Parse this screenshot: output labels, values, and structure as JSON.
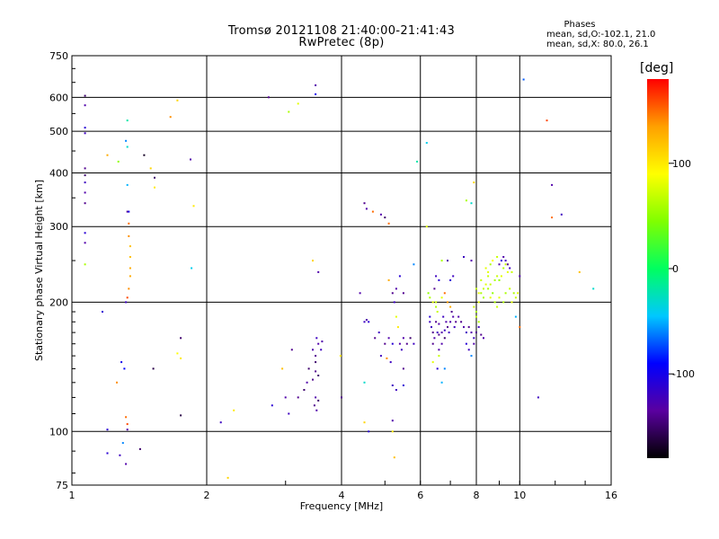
{
  "title_line1": "Tromsø 20121108 21:40:00-21:41:43",
  "title_line2": "RwPretec (8p)",
  "stats": {
    "heading": "Phases",
    "line1": "mean, sd,O:-102.1, 21.0",
    "line2": "mean, sd,X:  80.0, 26.1"
  },
  "chart_data": {
    "type": "scatter",
    "xlabel": "Frequency [MHz]",
    "ylabel": "Stationary phase Virtual Height [km]",
    "xscale": "log",
    "yscale": "log",
    "xlim": [
      1,
      16
    ],
    "ylim": [
      75,
      750
    ],
    "x_ticks": [
      1,
      2,
      4,
      6,
      8,
      10,
      16
    ],
    "y_ticks": [
      75,
      100,
      200,
      300,
      400,
      500,
      600,
      750
    ],
    "grid": true,
    "colorbar": {
      "label": "[deg]",
      "range": [
        -180,
        180
      ],
      "ticks": [
        100,
        0,
        -100
      ],
      "colormap": [
        "#000000",
        "#5a00a0",
        "#0000ff",
        "#00c8ff",
        "#00ff60",
        "#80ff00",
        "#ffff00",
        "#ffa000",
        "#ff0000"
      ]
    },
    "points": [
      [
        1.07,
        605,
        -150
      ],
      [
        1.07,
        575,
        -130
      ],
      [
        1.07,
        510,
        -110
      ],
      [
        1.07,
        495,
        -120
      ],
      [
        1.07,
        410,
        -140
      ],
      [
        1.07,
        395,
        -150
      ],
      [
        1.07,
        380,
        -120
      ],
      [
        1.07,
        360,
        -130
      ],
      [
        1.07,
        340,
        -140
      ],
      [
        1.07,
        290,
        -110
      ],
      [
        1.07,
        275,
        -130
      ],
      [
        1.07,
        245,
        60
      ],
      [
        1.2,
        440,
        130
      ],
      [
        1.27,
        425,
        50
      ],
      [
        1.33,
        530,
        -20
      ],
      [
        1.32,
        475,
        -60
      ],
      [
        1.33,
        460,
        -30
      ],
      [
        1.33,
        375,
        -50
      ],
      [
        1.33,
        325,
        -140
      ],
      [
        1.34,
        325,
        -100
      ],
      [
        1.34,
        305,
        150
      ],
      [
        1.34,
        285,
        140
      ],
      [
        1.35,
        270,
        120
      ],
      [
        1.35,
        255,
        120
      ],
      [
        1.35,
        240,
        130
      ],
      [
        1.35,
        230,
        130
      ],
      [
        1.34,
        215,
        140
      ],
      [
        1.33,
        205,
        160
      ],
      [
        1.32,
        200,
        -120
      ],
      [
        1.17,
        190,
        -110
      ],
      [
        1.29,
        145,
        -100
      ],
      [
        1.31,
        140,
        -90
      ],
      [
        1.26,
        130,
        140
      ],
      [
        1.32,
        108,
        150
      ],
      [
        1.33,
        104,
        160
      ],
      [
        1.2,
        101,
        -110
      ],
      [
        1.33,
        101,
        -130
      ],
      [
        1.2,
        89,
        -110
      ],
      [
        1.28,
        88,
        -120
      ],
      [
        1.32,
        84,
        -130
      ],
      [
        1.42,
        91,
        -150
      ],
      [
        1.3,
        94,
        -60
      ],
      [
        1.45,
        440,
        -170
      ],
      [
        1.5,
        410,
        110
      ],
      [
        1.53,
        390,
        -150
      ],
      [
        1.53,
        370,
        100
      ],
      [
        1.52,
        140,
        -160
      ],
      [
        1.66,
        540,
        140
      ],
      [
        1.72,
        590,
        110
      ],
      [
        1.75,
        165,
        -150
      ],
      [
        1.72,
        152,
        90
      ],
      [
        1.75,
        148,
        100
      ],
      [
        1.75,
        109,
        -160
      ],
      [
        1.84,
        430,
        -130
      ],
      [
        1.87,
        335,
        100
      ],
      [
        1.85,
        240,
        -40
      ],
      [
        2.15,
        105,
        -120
      ],
      [
        2.23,
        78,
        110
      ],
      [
        2.3,
        112,
        100
      ],
      [
        2.75,
        600,
        -140
      ],
      [
        3.05,
        555,
        60
      ],
      [
        3.2,
        580,
        80
      ],
      [
        3.5,
        640,
        -130
      ],
      [
        3.5,
        610,
        -100
      ],
      [
        3.45,
        250,
        110
      ],
      [
        3.55,
        235,
        -130
      ],
      [
        2.8,
        115,
        -110
      ],
      [
        2.95,
        140,
        120
      ],
      [
        3.0,
        120,
        -130
      ],
      [
        3.05,
        110,
        -120
      ],
      [
        3.1,
        155,
        -140
      ],
      [
        3.2,
        120,
        -140
      ],
      [
        3.3,
        125,
        -150
      ],
      [
        3.35,
        130,
        -130
      ],
      [
        3.38,
        140,
        -150
      ],
      [
        3.45,
        155,
        -130
      ],
      [
        3.5,
        150,
        -140
      ],
      [
        3.5,
        145,
        -150
      ],
      [
        3.52,
        165,
        -120
      ],
      [
        3.55,
        160,
        -130
      ],
      [
        3.6,
        155,
        -120
      ],
      [
        3.62,
        162,
        -130
      ],
      [
        3.5,
        138,
        -140
      ],
      [
        3.55,
        135,
        -150
      ],
      [
        3.45,
        132,
        -140
      ],
      [
        3.5,
        120,
        -130
      ],
      [
        3.55,
        118,
        -150
      ],
      [
        3.48,
        115,
        -140
      ],
      [
        3.52,
        112,
        -130
      ],
      [
        3.98,
        150,
        100
      ],
      [
        4.0,
        120,
        -140
      ],
      [
        4.5,
        340,
        -140
      ],
      [
        4.55,
        330,
        -130
      ],
      [
        4.7,
        325,
        150
      ],
      [
        4.9,
        320,
        -130
      ],
      [
        5.0,
        315,
        -150
      ],
      [
        5.1,
        305,
        150
      ],
      [
        4.4,
        210,
        -130
      ],
      [
        4.5,
        180,
        -120
      ],
      [
        4.6,
        180,
        -110
      ],
      [
        4.55,
        182,
        -130
      ],
      [
        4.5,
        130,
        -30
      ],
      [
        4.5,
        105,
        110
      ],
      [
        4.6,
        100,
        -110
      ],
      [
        4.75,
        165,
        -140
      ],
      [
        4.85,
        170,
        -120
      ],
      [
        5.0,
        160,
        -140
      ],
      [
        5.1,
        165,
        -130
      ],
      [
        5.2,
        160,
        -110
      ],
      [
        4.9,
        150,
        -120
      ],
      [
        5.05,
        148,
        140
      ],
      [
        5.15,
        145,
        -120
      ],
      [
        5.3,
        185,
        80
      ],
      [
        5.35,
        175,
        100
      ],
      [
        5.4,
        160,
        -130
      ],
      [
        5.45,
        155,
        -120
      ],
      [
        5.5,
        140,
        -140
      ],
      [
        5.6,
        160,
        -140
      ],
      [
        5.7,
        165,
        -150
      ],
      [
        5.8,
        160,
        -120
      ],
      [
        5.5,
        165,
        -130
      ],
      [
        5.1,
        225,
        130
      ],
      [
        5.2,
        210,
        -140
      ],
      [
        5.25,
        200,
        -120
      ],
      [
        5.3,
        215,
        -130
      ],
      [
        5.5,
        210,
        -140
      ],
      [
        5.4,
        230,
        -110
      ],
      [
        5.5,
        128,
        -110
      ],
      [
        5.2,
        128,
        -120
      ],
      [
        5.3,
        125,
        -120
      ],
      [
        5.2,
        106,
        -130
      ],
      [
        5.2,
        100,
        100
      ],
      [
        5.25,
        87,
        120
      ],
      [
        5.8,
        245,
        -60
      ],
      [
        5.9,
        425,
        -20
      ],
      [
        6.2,
        470,
        -40
      ],
      [
        6.25,
        210,
        50
      ],
      [
        6.3,
        205,
        60
      ],
      [
        6.4,
        200,
        80
      ],
      [
        6.5,
        195,
        60
      ],
      [
        6.55,
        190,
        70
      ],
      [
        6.45,
        215,
        -140
      ],
      [
        6.6,
        225,
        -110
      ],
      [
        6.5,
        230,
        -120
      ],
      [
        6.3,
        180,
        -120
      ],
      [
        6.35,
        175,
        -120
      ],
      [
        6.4,
        170,
        -140
      ],
      [
        6.45,
        165,
        -130
      ],
      [
        6.55,
        170,
        -120
      ],
      [
        6.6,
        168,
        -140
      ],
      [
        6.7,
        170,
        -130
      ],
      [
        6.8,
        172,
        -120
      ],
      [
        6.9,
        175,
        -140
      ],
      [
        6.85,
        180,
        -130
      ],
      [
        6.75,
        185,
        -120
      ],
      [
        6.6,
        178,
        -130
      ],
      [
        6.5,
        180,
        -140
      ],
      [
        6.7,
        160,
        -130
      ],
      [
        6.8,
        165,
        -150
      ],
      [
        6.95,
        170,
        -120
      ],
      [
        7.0,
        180,
        -130
      ],
      [
        7.05,
        190,
        -140
      ],
      [
        7.1,
        185,
        -130
      ],
      [
        7.15,
        175,
        -120
      ],
      [
        7.2,
        180,
        -140
      ],
      [
        6.3,
        185,
        -110
      ],
      [
        6.4,
        160,
        -140
      ],
      [
        6.6,
        155,
        -130
      ],
      [
        6.7,
        130,
        -50
      ],
      [
        6.8,
        140,
        -60
      ],
      [
        6.55,
        140,
        -110
      ],
      [
        6.4,
        145,
        80
      ],
      [
        6.6,
        150,
        70
      ],
      [
        6.2,
        300,
        80
      ],
      [
        6.7,
        250,
        60
      ],
      [
        6.9,
        250,
        -130
      ],
      [
        7.0,
        225,
        -110
      ],
      [
        7.1,
        230,
        -120
      ],
      [
        6.5,
        200,
        70
      ],
      [
        6.7,
        205,
        80
      ],
      [
        6.8,
        210,
        150
      ],
      [
        6.9,
        200,
        140
      ],
      [
        7.0,
        195,
        130
      ],
      [
        7.3,
        185,
        -130
      ],
      [
        7.4,
        180,
        -140
      ],
      [
        7.5,
        175,
        -130
      ],
      [
        7.6,
        170,
        -120
      ],
      [
        7.7,
        175,
        -140
      ],
      [
        7.8,
        170,
        -130
      ],
      [
        7.9,
        165,
        -120
      ],
      [
        8.0,
        170,
        -140
      ],
      [
        7.6,
        160,
        -110
      ],
      [
        7.7,
        155,
        -120
      ],
      [
        7.8,
        150,
        -60
      ],
      [
        7.9,
        160,
        -130
      ],
      [
        8.1,
        175,
        -120
      ],
      [
        8.2,
        168,
        -140
      ],
      [
        8.3,
        165,
        -130
      ],
      [
        7.5,
        255,
        -120
      ],
      [
        7.8,
        250,
        -130
      ],
      [
        7.9,
        195,
        70
      ],
      [
        8.0,
        190,
        60
      ],
      [
        8.0,
        185,
        70
      ],
      [
        8.1,
        180,
        60
      ],
      [
        8.1,
        200,
        80
      ],
      [
        7.6,
        345,
        60
      ],
      [
        7.9,
        380,
        110
      ],
      [
        7.8,
        340,
        -30
      ],
      [
        8.2,
        210,
        60
      ],
      [
        8.3,
        215,
        70
      ],
      [
        8.4,
        220,
        80
      ],
      [
        8.5,
        215,
        60
      ],
      [
        8.6,
        220,
        70
      ],
      [
        8.7,
        210,
        50
      ],
      [
        8.8,
        225,
        60
      ],
      [
        8.9,
        230,
        70
      ],
      [
        9.0,
        225,
        50
      ],
      [
        9.1,
        230,
        80
      ],
      [
        9.2,
        240,
        60
      ],
      [
        9.3,
        245,
        70
      ],
      [
        9.4,
        235,
        80
      ],
      [
        8.0,
        215,
        70
      ],
      [
        8.1,
        210,
        80
      ],
      [
        8.3,
        205,
        60
      ],
      [
        8.2,
        225,
        70
      ],
      [
        8.5,
        235,
        80
      ],
      [
        8.6,
        245,
        60
      ],
      [
        8.7,
        250,
        90
      ],
      [
        8.9,
        255,
        70
      ],
      [
        9.0,
        245,
        -130
      ],
      [
        9.1,
        250,
        -110
      ],
      [
        9.2,
        255,
        -130
      ],
      [
        9.3,
        250,
        -120
      ],
      [
        9.4,
        245,
        -140
      ],
      [
        9.5,
        240,
        -120
      ],
      [
        9.6,
        235,
        70
      ],
      [
        9.7,
        210,
        60
      ],
      [
        9.8,
        205,
        70
      ],
      [
        9.9,
        210,
        80
      ],
      [
        8.4,
        240,
        80
      ],
      [
        8.5,
        230,
        70
      ],
      [
        8.6,
        205,
        80
      ],
      [
        8.8,
        200,
        60
      ],
      [
        8.9,
        195,
        70
      ],
      [
        9.0,
        205,
        80
      ],
      [
        9.3,
        210,
        60
      ],
      [
        9.5,
        215,
        70
      ],
      [
        9.2,
        200,
        60
      ],
      [
        9.6,
        200,
        80
      ],
      [
        9.8,
        185,
        -50
      ],
      [
        10.0,
        175,
        150
      ],
      [
        10.0,
        230,
        -130
      ],
      [
        10.2,
        660,
        -70
      ],
      [
        11.0,
        120,
        -120
      ],
      [
        11.5,
        530,
        160
      ],
      [
        11.8,
        375,
        -130
      ],
      [
        11.8,
        315,
        150
      ],
      [
        12.4,
        320,
        -120
      ],
      [
        13.6,
        235,
        120
      ],
      [
        14.6,
        215,
        -30
      ]
    ]
  }
}
